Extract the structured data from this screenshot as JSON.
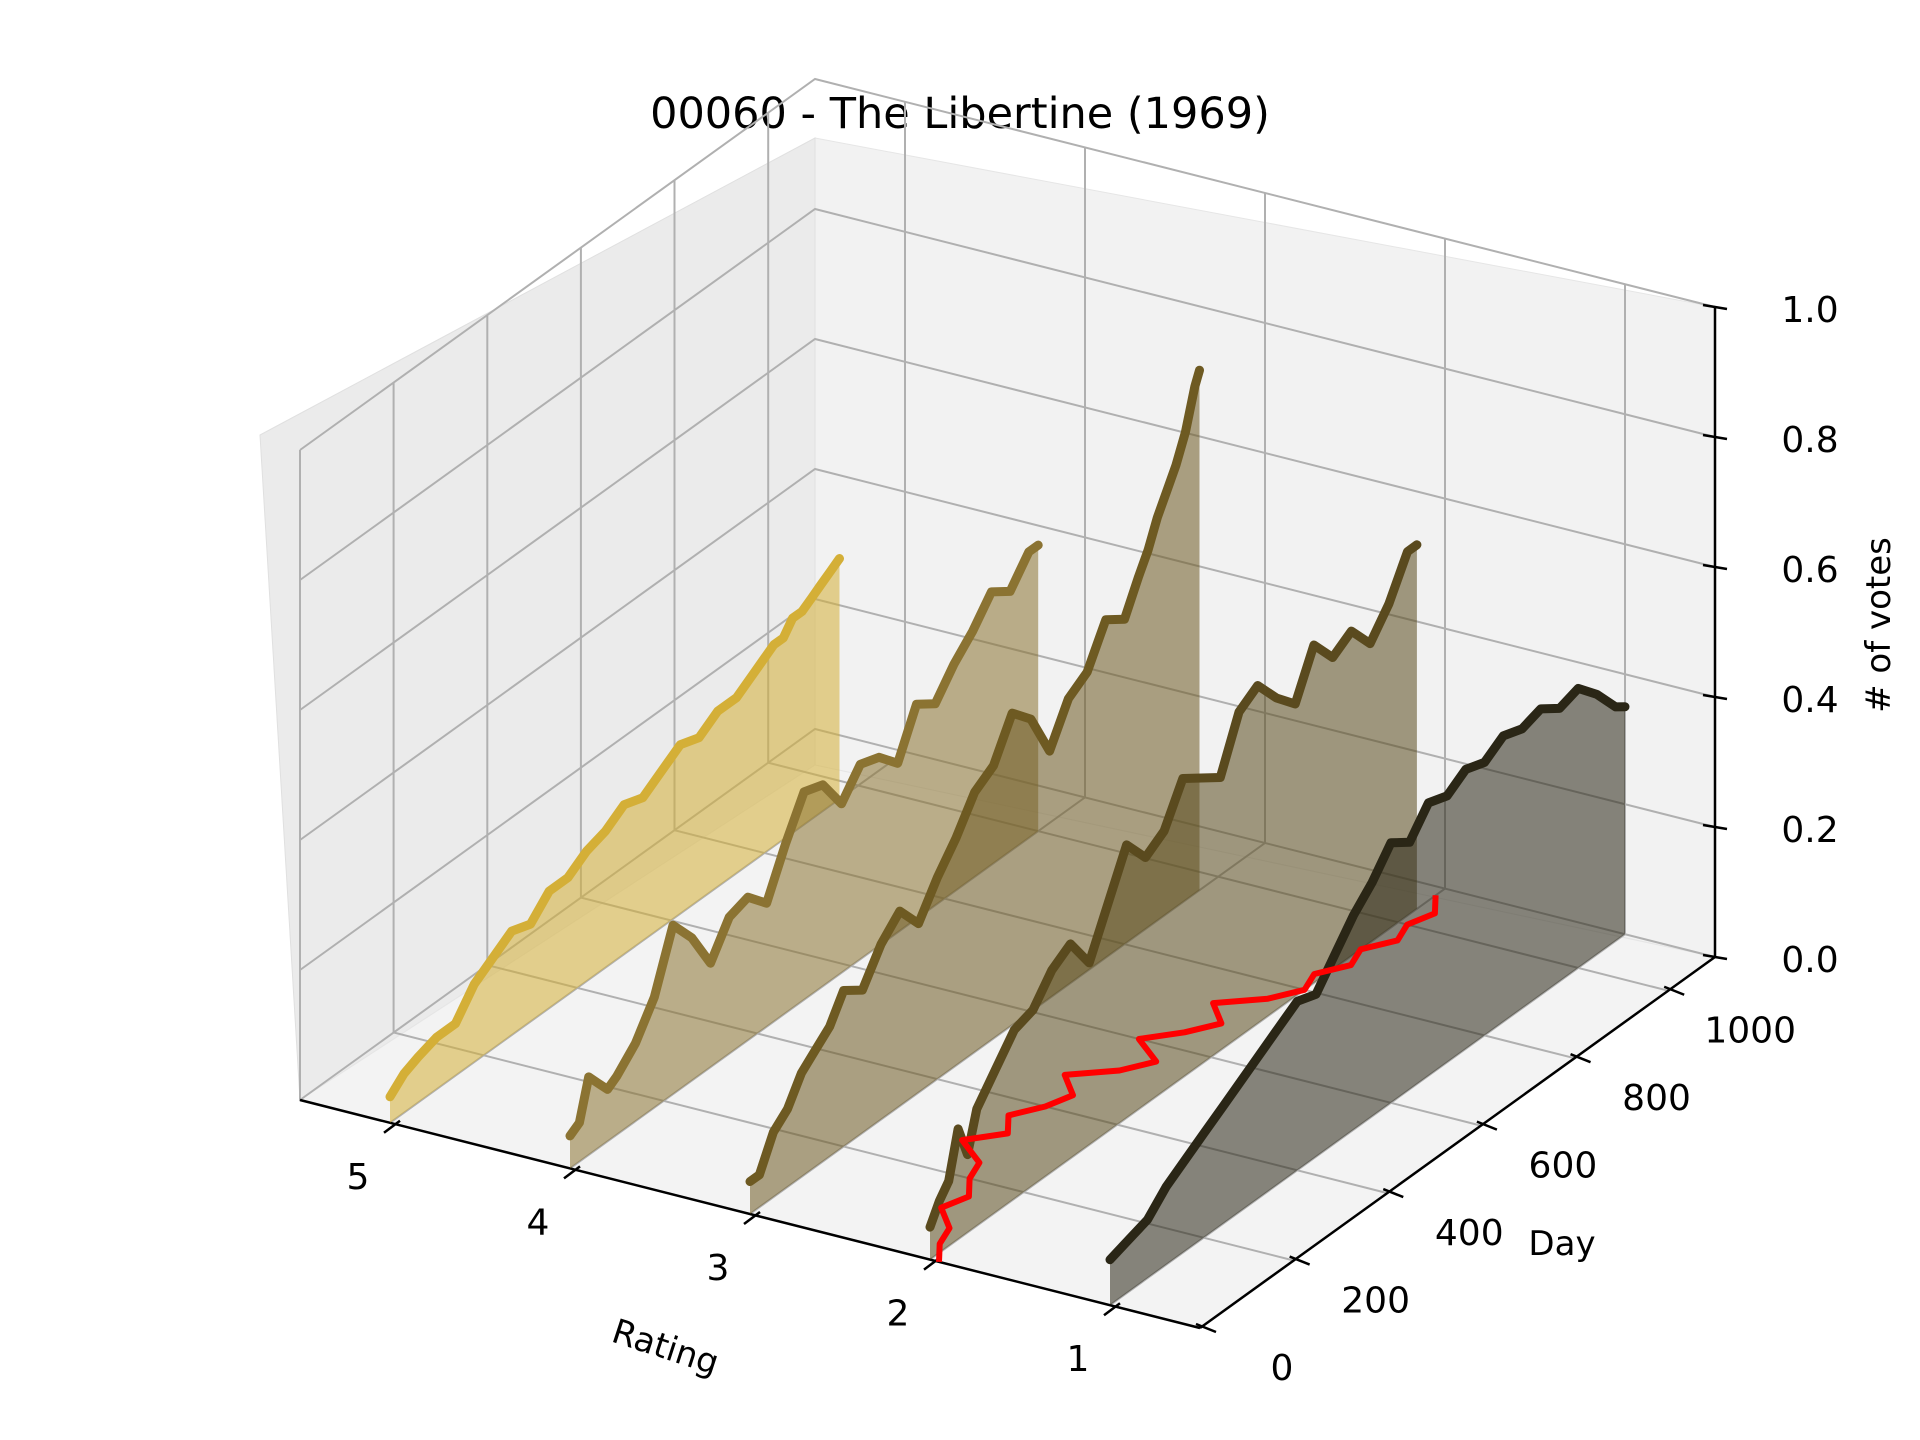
{
  "chart_data": {
    "type": "line",
    "title": "00060 - The Libertine (1969)",
    "xlabel": "Rating",
    "ylabel": "Day",
    "zlabel": "# of votes",
    "xlim": [
      0.5,
      5.5
    ],
    "ylim": [
      0,
      1100
    ],
    "zlim": [
      0,
      1
    ],
    "x_ticks": [
      "1",
      "2",
      "3",
      "4",
      "5"
    ],
    "y_ticks": [
      "0",
      "200",
      "400",
      "600",
      "800",
      "1000"
    ],
    "z_ticks": [
      "0.0",
      "0.2",
      "0.4",
      "0.6",
      "0.8",
      "1.0"
    ],
    "grid": true,
    "series": [
      {
        "rating": 5,
        "color": "#d4af37",
        "days": [
          0,
          30,
          60,
          100,
          140,
          180,
          220,
          260,
          300,
          340,
          380,
          420,
          460,
          500,
          540,
          580,
          620,
          660,
          700,
          740,
          780,
          800,
          820,
          840,
          860,
          880,
          900,
          920,
          940,
          960
        ],
        "values": [
          0.04,
          0.06,
          0.07,
          0.08,
          0.08,
          0.12,
          0.14,
          0.16,
          0.15,
          0.18,
          0.18,
          0.2,
          0.21,
          0.23,
          0.22,
          0.24,
          0.26,
          0.25,
          0.27,
          0.27,
          0.29,
          0.3,
          0.31,
          0.31,
          0.33,
          0.33,
          0.34,
          0.35,
          0.36,
          0.37
        ]
      },
      {
        "rating": 4,
        "color": "#8b7332",
        "days": [
          0,
          20,
          40,
          60,
          80,
          100,
          140,
          180,
          220,
          260,
          300,
          340,
          380,
          420,
          460,
          500,
          540,
          580,
          620,
          660,
          700,
          740,
          780,
          820,
          860,
          900,
          940,
          980,
          1000
        ],
        "values": [
          0.05,
          0.06,
          0.12,
          0.1,
          0.08,
          0.09,
          0.12,
          0.17,
          0.26,
          0.22,
          0.16,
          0.21,
          0.22,
          0.19,
          0.26,
          0.32,
          0.31,
          0.26,
          0.3,
          0.29,
          0.26,
          0.33,
          0.31,
          0.35,
          0.38,
          0.42,
          0.4,
          0.44,
          0.44
        ]
      },
      {
        "rating": 3,
        "color": "#6e5a22",
        "days": [
          0,
          20,
          50,
          80,
          110,
          140,
          170,
          200,
          240,
          280,
          320,
          360,
          400,
          440,
          480,
          520,
          560,
          600,
          640,
          680,
          720,
          760,
          800,
          830,
          850,
          870,
          890,
          910,
          930,
          950,
          960
        ],
        "values": [
          0.05,
          0.05,
          0.1,
          0.12,
          0.16,
          0.18,
          0.2,
          0.24,
          0.22,
          0.27,
          0.3,
          0.26,
          0.31,
          0.35,
          0.4,
          0.42,
          0.48,
          0.45,
          0.38,
          0.44,
          0.46,
          0.52,
          0.5,
          0.55,
          0.58,
          0.62,
          0.65,
          0.68,
          0.72,
          0.78,
          0.8
        ]
      },
      {
        "rating": 2,
        "color": "#5a4a1e",
        "days": [
          0,
          20,
          40,
          60,
          80,
          100,
          140,
          180,
          220,
          260,
          300,
          340,
          380,
          420,
          460,
          500,
          540,
          580,
          620,
          660,
          700,
          740,
          780,
          820,
          860,
          900,
          940,
          980,
          1020,
          1040
        ],
        "values": [
          0.05,
          0.08,
          0.1,
          0.17,
          0.12,
          0.18,
          0.22,
          0.26,
          0.27,
          0.31,
          0.33,
          0.28,
          0.35,
          0.42,
          0.38,
          0.4,
          0.46,
          0.44,
          0.42,
          0.5,
          0.52,
          0.48,
          0.45,
          0.52,
          0.48,
          0.5,
          0.46,
          0.5,
          0.56,
          0.56
        ]
      },
      {
        "rating": 1,
        "color": "#2a2616",
        "days": [
          0,
          40,
          80,
          120,
          160,
          200,
          240,
          280,
          320,
          360,
          400,
          440,
          480,
          520,
          560,
          600,
          640,
          680,
          720,
          760,
          800,
          840,
          880,
          920,
          960,
          1000,
          1040,
          1080,
          1100
        ],
        "values": [
          0.07,
          0.08,
          0.09,
          0.12,
          0.14,
          0.16,
          0.18,
          0.2,
          0.22,
          0.24,
          0.26,
          0.25,
          0.29,
          0.33,
          0.36,
          0.4,
          0.38,
          0.42,
          0.41,
          0.43,
          0.42,
          0.44,
          0.43,
          0.44,
          0.42,
          0.43,
          0.4,
          0.36,
          0.35
        ]
      }
    ],
    "mean_line": {
      "color": "#ff0000",
      "days": [
        0,
        40,
        80,
        120,
        160,
        200,
        240,
        280,
        320,
        360,
        400,
        440,
        480,
        520,
        560,
        600,
        640,
        680,
        720,
        760,
        800,
        840,
        880,
        920,
        960,
        1000,
        1040,
        1080
      ],
      "ratings": [
        1.95,
        2.05,
        2.1,
        2.25,
        2.2,
        2.3,
        2.35,
        2.55,
        2.4,
        2.5,
        2.4,
        2.35,
        2.5,
        2.3,
        2.2,
        2.4,
        2.25,
        2.15,
        2.3,
        2.1,
        2.0,
        2.05,
        1.95,
        2.0,
        1.9,
        1.95,
        1.9,
        2.0
      ]
    }
  }
}
